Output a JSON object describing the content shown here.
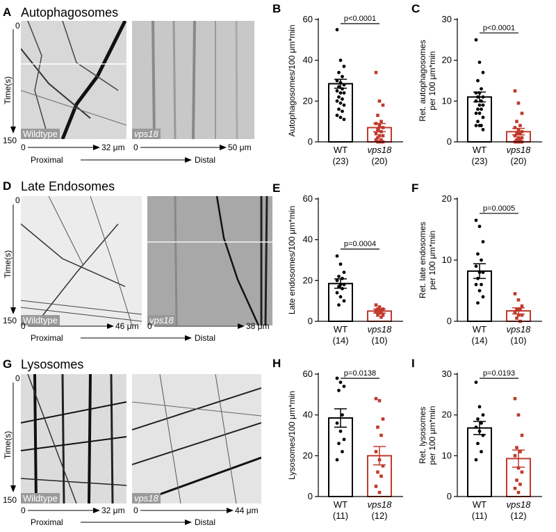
{
  "rows": [
    {
      "id": "auto",
      "kymo_label": "A",
      "title": "Autophagosomes",
      "time_label": "Time(s)",
      "t0": "0",
      "t1": "150",
      "wt_label": "Wildtype",
      "mut_label": "vps18",
      "wt_scale": "32 μm",
      "mut_scale": "50 μm",
      "zero": "0",
      "proximal": "Proximal",
      "distal": "Distal"
    },
    {
      "id": "late",
      "kymo_label": "D",
      "title": "Late Endosomes",
      "time_label": "Time(s)",
      "t0": "0",
      "t1": "150",
      "wt_label": "Wildtype",
      "mut_label": "vps18",
      "wt_scale": "46 μm",
      "mut_scale": "38 μm",
      "zero": "0",
      "proximal": "Proximal",
      "distal": "Distal"
    },
    {
      "id": "lyso",
      "kymo_label": "G",
      "title": "Lysosomes",
      "time_label": "Time(s)",
      "t0": "0",
      "t1": "150",
      "wt_label": "Wildtype",
      "mut_label": "vps18",
      "wt_scale": "32 μm",
      "mut_scale": "44 μm",
      "zero": "0",
      "proximal": "Proximal",
      "distal": "Distal"
    }
  ],
  "colors": {
    "wt": "#000000",
    "mut": "#c0392b"
  },
  "chart_data": [
    {
      "panel": "B",
      "type": "bar",
      "ylabel": "Autophagosomes/100 μm*min",
      "ylim": [
        0,
        60
      ],
      "yticks": [
        0,
        20,
        40,
        60
      ],
      "categories": [
        "WT",
        "vps18"
      ],
      "ns": [
        "(23)",
        "(20)"
      ],
      "pvalue": "p<0.0001",
      "means": [
        28.5,
        7
      ],
      "sems": [
        2.2,
        2
      ],
      "points": [
        [
          55,
          40,
          37,
          34,
          32,
          30,
          29,
          28,
          27,
          26,
          25,
          24,
          24,
          22,
          21,
          20,
          19,
          18,
          16,
          15,
          13,
          12,
          11
        ],
        [
          34,
          20,
          18,
          13,
          10,
          9,
          8,
          7,
          6,
          5,
          4,
          3,
          3,
          2,
          1,
          1,
          0,
          0,
          0,
          0
        ]
      ]
    },
    {
      "panel": "C",
      "type": "bar",
      "ylabel": "Ret. autophagosomes\nper 100 μm*min",
      "ylim": [
        0,
        30
      ],
      "yticks": [
        0,
        10,
        20,
        30
      ],
      "categories": [
        "WT",
        "vps18"
      ],
      "ns": [
        "(23)",
        "(20)"
      ],
      "pvalue": "p<0.0001",
      "means": [
        11,
        2.5
      ],
      "sems": [
        1.2,
        0.8
      ],
      "points": [
        [
          25,
          19.5,
          17,
          15,
          13,
          12,
          12,
          11,
          11,
          10,
          10,
          9,
          9,
          8,
          8,
          7,
          7,
          6,
          5,
          4,
          4,
          4,
          3
        ],
        [
          12.5,
          9.5,
          7,
          5,
          4,
          3.5,
          3,
          2.5,
          2,
          2,
          1.5,
          1,
          1,
          0.5,
          0.5,
          0,
          0,
          0,
          0,
          0
        ]
      ]
    },
    {
      "panel": "E",
      "type": "bar",
      "ylabel": "Late endosomes/100 μm*min",
      "ylim": [
        0,
        60
      ],
      "yticks": [
        0,
        20,
        40,
        60
      ],
      "categories": [
        "WT",
        "vps18"
      ],
      "ns": [
        "(14)",
        "(10)"
      ],
      "pvalue": "p=0.0004",
      "means": [
        18.5,
        5
      ],
      "sems": [
        2.3,
        1
      ],
      "points": [
        [
          32,
          28,
          24,
          22,
          21,
          20,
          18,
          18,
          17,
          16,
          14,
          12,
          10,
          8
        ],
        [
          8,
          7,
          6,
          6,
          5,
          5,
          4,
          3,
          3,
          2
        ]
      ]
    },
    {
      "panel": "F",
      "type": "bar",
      "ylabel": "Ret. late endosomes\nper 100 μm*min",
      "ylim": [
        0,
        20
      ],
      "yticks": [
        0,
        10,
        20
      ],
      "categories": [
        "WT",
        "vps18"
      ],
      "ns": [
        "(14)",
        "(10)"
      ],
      "pvalue": "p=0.0005",
      "means": [
        8.2,
        1.7
      ],
      "sems": [
        1.2,
        0.5
      ],
      "points": [
        [
          16.5,
          15.5,
          13,
          11,
          10,
          9,
          8,
          8,
          7,
          6,
          6,
          5,
          4,
          3
        ],
        [
          4.5,
          3.5,
          2.5,
          2,
          2,
          1.5,
          1,
          1,
          0.5,
          0
        ]
      ]
    },
    {
      "panel": "H",
      "type": "bar",
      "ylabel": "Lysosomes/100 μm*min",
      "ylim": [
        0,
        60
      ],
      "yticks": [
        0,
        20,
        40,
        60
      ],
      "categories": [
        "WT",
        "vps18"
      ],
      "ns": [
        "(11)",
        "(12)"
      ],
      "pvalue": "p=0.0138",
      "means": [
        38.5,
        20
      ],
      "sems": [
        4.5,
        4.5
      ],
      "points": [
        [
          58,
          56,
          54,
          52,
          40,
          36,
          32,
          28,
          26,
          22,
          18
        ],
        [
          48,
          47,
          38,
          34,
          30,
          22,
          18,
          15,
          12,
          10,
          5,
          2
        ]
      ]
    },
    {
      "panel": "I",
      "type": "bar",
      "ylabel": "Ret. lysosomes\nper 100 μm*min",
      "ylim": [
        0,
        30
      ],
      "yticks": [
        0,
        10,
        20,
        30
      ],
      "categories": [
        "WT",
        "vps18"
      ],
      "ns": [
        "(11)",
        "(12)"
      ],
      "pvalue": "p=0.0193",
      "means": [
        16.8,
        9.3
      ],
      "sems": [
        1.6,
        2.1
      ],
      "points": [
        [
          28,
          22,
          20,
          19,
          18,
          17,
          16,
          15,
          13,
          11,
          9
        ],
        [
          24,
          20,
          15,
          12,
          11,
          10,
          7,
          6,
          4,
          3,
          2,
          1
        ]
      ]
    }
  ]
}
